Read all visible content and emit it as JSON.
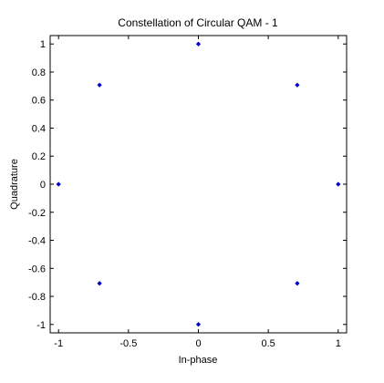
{
  "chart_data": {
    "type": "scatter",
    "title": "Constellation of Circular QAM - 1",
    "xlabel": "In-phase",
    "ylabel": "Quadrature",
    "xlim": [
      -1.06,
      1.06
    ],
    "ylim": [
      -1.06,
      1.06
    ],
    "grid": false,
    "marker_color": "#0000cc",
    "xticks": [
      -1,
      -0.5,
      0,
      0.5,
      1
    ],
    "xtick_labels": [
      "-1",
      "-0.5",
      "0",
      "0.5",
      "1"
    ],
    "yticks": [
      1,
      0.8,
      0.6,
      0.4,
      0.2,
      0,
      -0.2,
      -0.4,
      -0.6,
      -0.8,
      -1
    ],
    "ytick_labels": [
      "1",
      "0.8",
      "0.6",
      "0.4",
      "0.2",
      "0",
      "-0.2",
      "-0.4",
      "-0.6",
      "-0.8",
      "-1"
    ],
    "points": [
      {
        "x": 0,
        "y": 1
      },
      {
        "x": -0.707,
        "y": 0.707
      },
      {
        "x": 0.707,
        "y": 0.707
      },
      {
        "x": -1,
        "y": 0
      },
      {
        "x": 1,
        "y": 0
      },
      {
        "x": -0.707,
        "y": -0.707
      },
      {
        "x": 0.707,
        "y": -0.707
      },
      {
        "x": 0,
        "y": -1
      }
    ]
  }
}
